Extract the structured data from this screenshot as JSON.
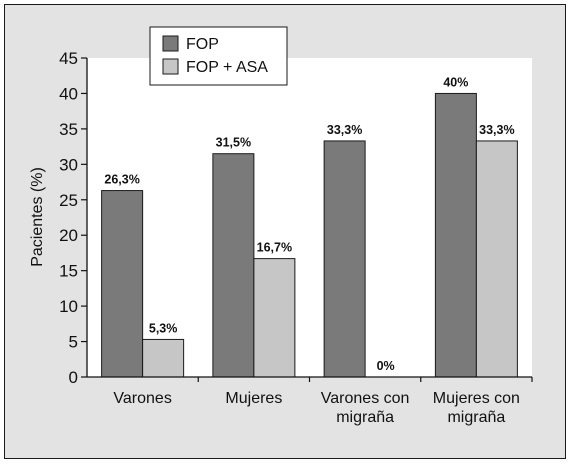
{
  "chart_data": {
    "type": "bar",
    "title": "",
    "xlabel": "",
    "ylabel": "Pacientes (%)",
    "ylim": [
      0,
      45
    ],
    "yticks": [
      0,
      5,
      10,
      15,
      20,
      25,
      30,
      35,
      40,
      45
    ],
    "grid": false,
    "legend_position": "top-left",
    "categories": [
      [
        "Varones"
      ],
      [
        "Mujeres"
      ],
      [
        "Varones con",
        "migraña"
      ],
      [
        "Mujeres con",
        "migraña"
      ]
    ],
    "series": [
      {
        "name": "FOP",
        "color": "#7a7a7a",
        "values": [
          26.3,
          31.5,
          33.3,
          40
        ],
        "labels": [
          "26,3%",
          "31,5%",
          "33,3%",
          "40%"
        ]
      },
      {
        "name": "FOP + ASA",
        "color": "#c6c6c6",
        "values": [
          5.3,
          16.7,
          0,
          33.3
        ],
        "labels": [
          "5,3%",
          "16,7%",
          "0%",
          "33,3%"
        ]
      }
    ]
  }
}
